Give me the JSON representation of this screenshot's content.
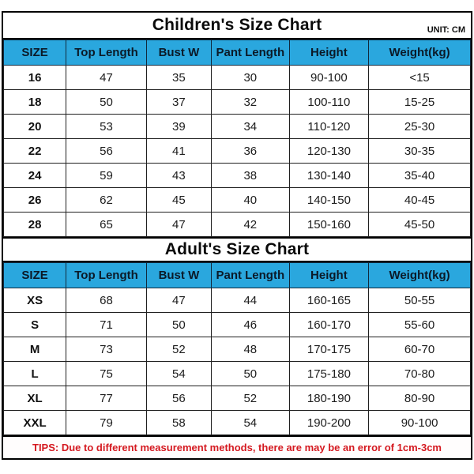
{
  "chart_data": [
    {
      "type": "table",
      "title": "Children's Size Chart",
      "unit": "UNIT: CM",
      "columns": [
        "SIZE",
        "Top Length",
        "Bust W",
        "Pant Length",
        "Height",
        "Weight(kg)"
      ],
      "rows": [
        [
          "16",
          "47",
          "35",
          "30",
          "90-100",
          "<15"
        ],
        [
          "18",
          "50",
          "37",
          "32",
          "100-110",
          "15-25"
        ],
        [
          "20",
          "53",
          "39",
          "34",
          "110-120",
          "25-30"
        ],
        [
          "22",
          "56",
          "41",
          "36",
          "120-130",
          "30-35"
        ],
        [
          "24",
          "59",
          "43",
          "38",
          "130-140",
          "35-40"
        ],
        [
          "26",
          "62",
          "45",
          "40",
          "140-150",
          "40-45"
        ],
        [
          "28",
          "65",
          "47",
          "42",
          "150-160",
          "45-50"
        ]
      ]
    },
    {
      "type": "table",
      "title": "Adult's Size Chart",
      "columns": [
        "SIZE",
        "Top Length",
        "Bust W",
        "Pant Length",
        "Height",
        "Weight(kg)"
      ],
      "rows": [
        [
          "XS",
          "68",
          "47",
          "44",
          "160-165",
          "50-55"
        ],
        [
          "S",
          "71",
          "50",
          "46",
          "160-170",
          "55-60"
        ],
        [
          "M",
          "73",
          "52",
          "48",
          "170-175",
          "60-70"
        ],
        [
          "L",
          "75",
          "54",
          "50",
          "175-180",
          "70-80"
        ],
        [
          "XL",
          "77",
          "56",
          "52",
          "180-190",
          "80-90"
        ],
        [
          "XXL",
          "79",
          "58",
          "54",
          "190-200",
          "90-100"
        ]
      ]
    }
  ],
  "tips": {
    "text": "TIPS: Due to different measurement methods, there are may be an error of 1cm-3cm"
  },
  "colors": {
    "header_bg": "#2aa7de",
    "tips_text": "#d51920",
    "border": "#000000"
  }
}
